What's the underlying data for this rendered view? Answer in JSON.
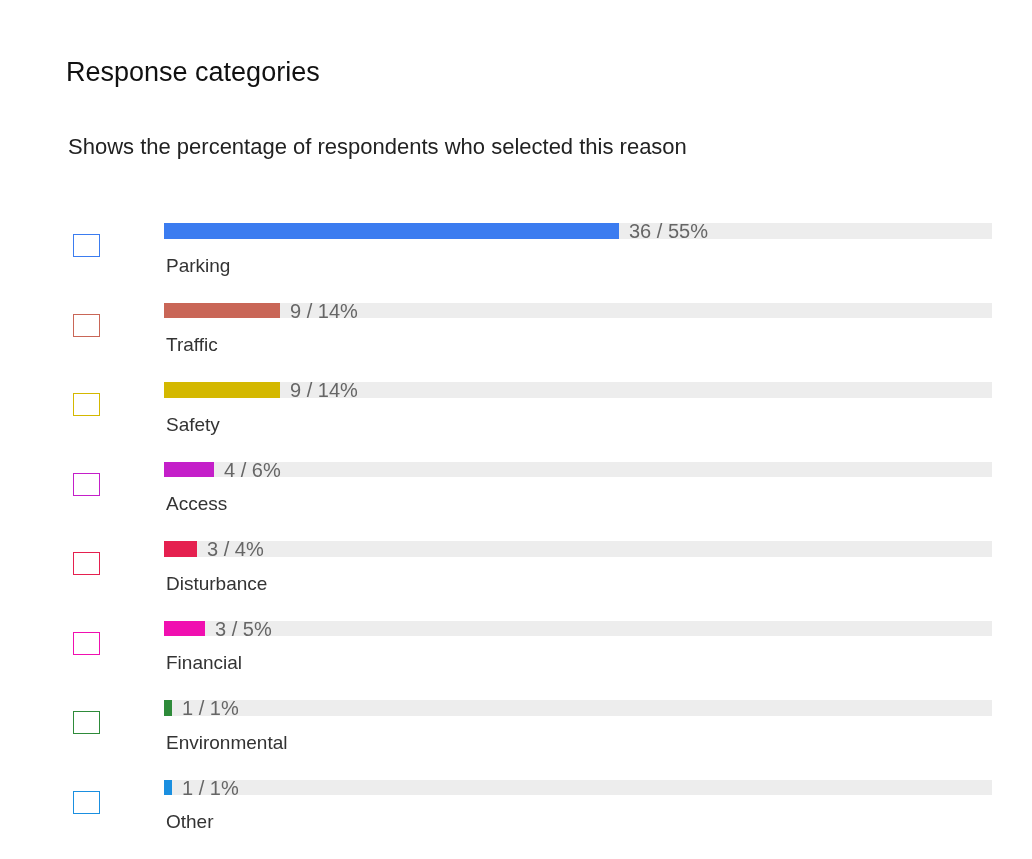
{
  "chart_data": {
    "type": "bar",
    "orientation": "horizontal",
    "stacked": true,
    "title": "Response categories",
    "subtitle": "Shows the percentage of respondents who selected this reason",
    "categories": [
      "Parking",
      "Traffic",
      "Safety",
      "Access",
      "Disturbance",
      "Financial",
      "Environmental",
      "Other"
    ],
    "series": [
      {
        "colors": [
          "#3b7cf0",
          "#c96657",
          "#d4b800",
          "#c41fc9",
          "#e5204f",
          "#f00fb0",
          "#2e8b3a",
          "#1a8fe0"
        ],
        "values": [
          55,
          14,
          14,
          6,
          4,
          5,
          1,
          1
        ],
        "value_labels": [
          "36 / 55%",
          "9 / 14%",
          "9 / 14%",
          "4 / 6%",
          "3 / 4%",
          "3 / 5%",
          "1 / 1%",
          "1 / 1%"
        ]
      },
      {
        "color": "#ededed",
        "values": [
          45,
          86,
          86,
          94,
          96,
          95,
          99,
          99
        ]
      }
    ],
    "xlim": [
      0,
      100
    ],
    "tick_labels": false
  }
}
